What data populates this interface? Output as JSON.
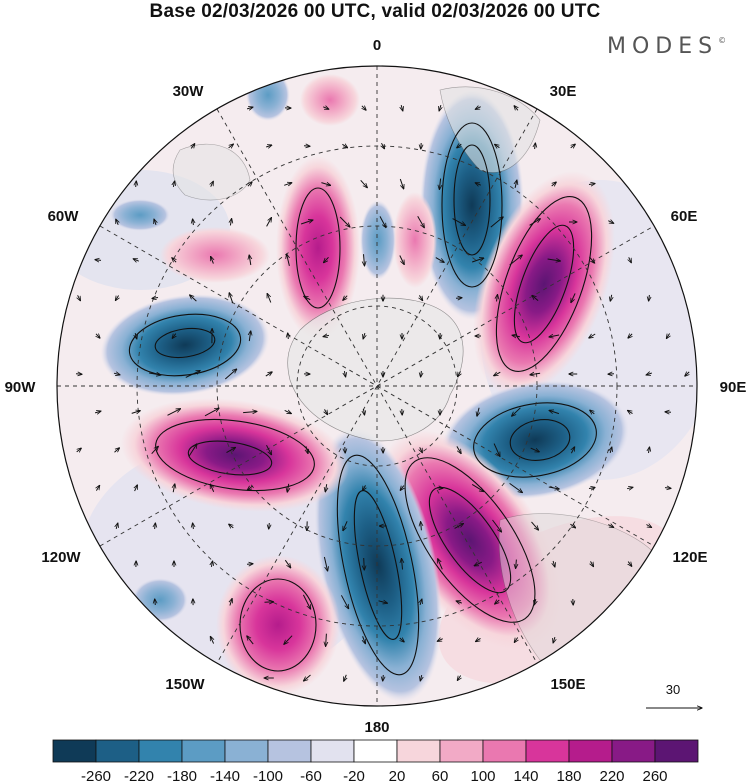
{
  "title": "Base 02/03/2026 00 UTC, valid 02/03/2026 00 UTC",
  "brand": "MODES",
  "brand_mark": "©",
  "longitude_labels": {
    "top": "0",
    "top_right": "30E",
    "upper_right": "60E",
    "right": "90E",
    "lower_right": "120E",
    "bottom_right": "150E",
    "bottom": "180",
    "bottom_left": "150W",
    "lower_left": "120W",
    "left": "90W",
    "upper_left": "60W",
    "top_left": "30W"
  },
  "reference_vector": {
    "value": "30"
  },
  "colorbar": {
    "ticks": [
      "-260",
      "-220",
      "-180",
      "-140",
      "-100",
      "-60",
      "-20",
      "20",
      "60",
      "100",
      "140",
      "180",
      "220",
      "260"
    ],
    "colors": [
      "#0f3a57",
      "#1d5f86",
      "#3283ad",
      "#5c9cc4",
      "#8ab1d4",
      "#b6c3e0",
      "#e2e2ef",
      "#ffffff",
      "#f7d6dc",
      "#f2aac6",
      "#ea78b0",
      "#d8359b",
      "#b51c8c",
      "#881a86",
      "#5c1573"
    ]
  },
  "anomaly_centers": [
    {
      "sign": "negative",
      "value": -220,
      "lon": 15,
      "lat": 52
    },
    {
      "sign": "positive",
      "value": 240,
      "lon": 50,
      "lat": 50
    },
    {
      "sign": "negative",
      "value": -200,
      "lon": 115,
      "lat": 50
    },
    {
      "sign": "positive",
      "value": 260,
      "lon": 150,
      "lat": 50
    },
    {
      "sign": "negative",
      "value": -260,
      "lon": 170,
      "lat": 48
    },
    {
      "sign": "positive",
      "value": 120,
      "lon": -155,
      "lat": 38
    },
    {
      "sign": "positive",
      "value": 220,
      "lon": -115,
      "lat": 52
    },
    {
      "sign": "negative",
      "value": -240,
      "lon": -80,
      "lat": 45
    },
    {
      "sign": "positive",
      "value": 140,
      "lon": -30,
      "lat": 58
    },
    {
      "sign": "positive",
      "value": 80,
      "lon": -20,
      "lat": 72
    }
  ]
}
